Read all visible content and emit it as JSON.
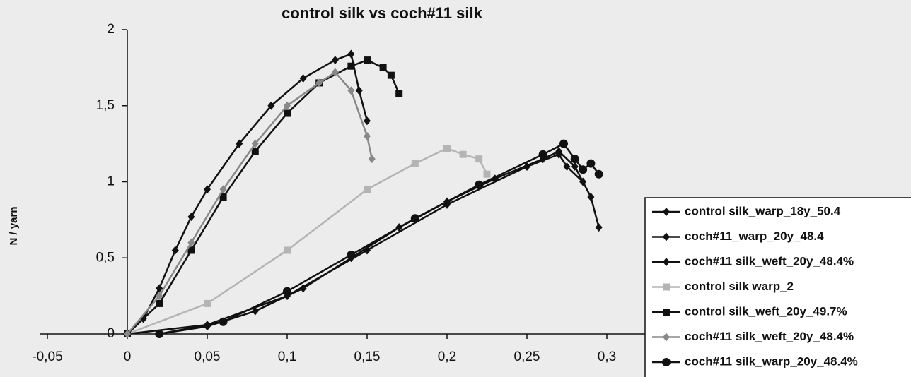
{
  "chart_data": {
    "type": "line",
    "title": "control silk vs coch#11 silk",
    "y_label": "N / yarn",
    "xlim": [
      -0.05,
      0.35
    ],
    "ylim": [
      0,
      2
    ],
    "xticks": [
      {
        "value": -0.05,
        "label": "-0,05"
      },
      0,
      {
        "value": 0.05,
        "label": "0,05"
      },
      {
        "value": 0.1,
        "label": "0,1"
      },
      {
        "value": 0.15,
        "label": "0,15"
      },
      {
        "value": 0.2,
        "label": "0,2"
      },
      {
        "value": 0.25,
        "label": "0,25"
      },
      {
        "value": 0.3,
        "label": "0,3"
      }
    ],
    "yticks": [
      0,
      {
        "value": 0.5,
        "label": "0,5"
      },
      1,
      {
        "value": 1.5,
        "label": "1,5"
      },
      2
    ],
    "legend": "right",
    "series": [
      {
        "name": "control silk_warp_18y_50.4",
        "color": "#111111",
        "marker": "diamond",
        "x": [
          0,
          0.01,
          0.02,
          0.03,
          0.04,
          0.05,
          0.07,
          0.09,
          0.11,
          0.13,
          0.14,
          0.145,
          0.15
        ],
        "values": [
          0,
          0.1,
          0.3,
          0.55,
          0.77,
          0.95,
          1.25,
          1.5,
          1.68,
          1.8,
          1.84,
          1.6,
          1.4
        ]
      },
      {
        "name": "coch#11_warp_20y_48.4",
        "color": "#111111",
        "marker": "diamond",
        "x": [
          0.02,
          0.05,
          0.08,
          0.11,
          0.14,
          0.17,
          0.2,
          0.23,
          0.26,
          0.27,
          0.28,
          0.29,
          0.295
        ],
        "values": [
          0,
          0.05,
          0.15,
          0.3,
          0.5,
          0.7,
          0.87,
          1.02,
          1.15,
          1.2,
          1.1,
          0.9,
          0.7
        ]
      },
      {
        "name": "coch#11 silk_weft_20y_48.4%",
        "color": "#111111",
        "marker": "diamond",
        "x": [
          0,
          0.05,
          0.1,
          0.15,
          0.2,
          0.25,
          0.27,
          0.275,
          0.285
        ],
        "values": [
          0,
          0.06,
          0.25,
          0.55,
          0.85,
          1.1,
          1.18,
          1.1,
          1.0
        ]
      },
      {
        "name": "control silk warp_2",
        "color": "#b4b4b4",
        "marker": "square",
        "x": [
          0,
          0.05,
          0.1,
          0.15,
          0.18,
          0.2,
          0.21,
          0.22,
          0.225
        ],
        "values": [
          0,
          0.2,
          0.55,
          0.95,
          1.12,
          1.22,
          1.18,
          1.15,
          1.05
        ]
      },
      {
        "name": "control silk_weft_20y_49.7%",
        "color": "#111111",
        "marker": "square",
        "x": [
          0,
          0.02,
          0.04,
          0.06,
          0.08,
          0.1,
          0.12,
          0.14,
          0.15,
          0.16,
          0.165,
          0.17
        ],
        "values": [
          0,
          0.2,
          0.55,
          0.9,
          1.2,
          1.45,
          1.65,
          1.76,
          1.8,
          1.75,
          1.7,
          1.58
        ]
      },
      {
        "name": "coch#11 silk_weft_20y_48.4%",
        "color": "#888888",
        "marker": "diamond",
        "x": [
          0,
          0.02,
          0.04,
          0.06,
          0.08,
          0.1,
          0.12,
          0.13,
          0.14,
          0.15,
          0.153
        ],
        "values": [
          0,
          0.25,
          0.6,
          0.95,
          1.25,
          1.5,
          1.65,
          1.72,
          1.6,
          1.3,
          1.15
        ]
      },
      {
        "name": "coch#11 silk_warp_20y_48.4%",
        "color": "#111111",
        "marker": "circle",
        "x": [
          0.02,
          0.06,
          0.1,
          0.14,
          0.18,
          0.22,
          0.26,
          0.273,
          0.28,
          0.285,
          0.29,
          0.295
        ],
        "values": [
          0,
          0.08,
          0.28,
          0.52,
          0.76,
          0.98,
          1.18,
          1.25,
          1.15,
          1.08,
          1.12,
          1.05
        ]
      }
    ]
  }
}
